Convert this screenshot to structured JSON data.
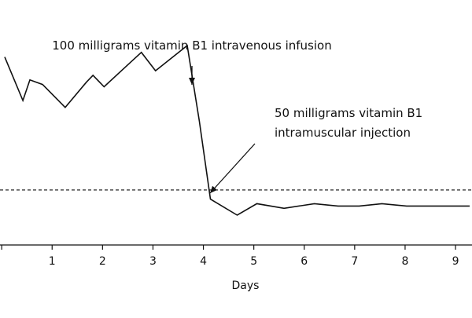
{
  "chart_data": {
    "type": "line",
    "xlabel": "Days",
    "ylabel": "",
    "title": "",
    "x_ticks": [
      1,
      2,
      3,
      4,
      5,
      6,
      7,
      8,
      9
    ],
    "xlim": [
      0.06,
      9.28
    ],
    "ylim": [
      0,
      100
    ],
    "grid": false,
    "line_color": "#111111",
    "series": [
      {
        "x": [
          0.06,
          0.42,
          0.56,
          0.81,
          1.26,
          1.68,
          1.81,
          2.03,
          2.57,
          2.77,
          3.05,
          3.68,
          3.92,
          4.14,
          4.67,
          5.06,
          5.6,
          6.2,
          6.67,
          7.09,
          7.54,
          8.03,
          8.5,
          9.28
        ],
        "y": [
          82,
          63,
          72,
          70,
          60,
          71,
          74,
          69,
          80,
          84,
          76,
          87,
          54,
          20,
          13,
          18,
          16,
          18,
          17,
          17,
          18,
          17,
          17,
          17
        ]
      }
    ],
    "reference_line": {
      "y": 24,
      "style": "dashed"
    },
    "annotations": [
      {
        "lines": [
          "100 milligrams vitamin B1 intravenous infusion"
        ],
        "x": 3.92,
        "y": 84,
        "arrow": "down"
      },
      {
        "lines": [
          "50 milligrams vitamin B1",
          "intramuscular injection"
        ],
        "x": 4.14,
        "y": 30,
        "arrow": "diagonal"
      }
    ]
  }
}
